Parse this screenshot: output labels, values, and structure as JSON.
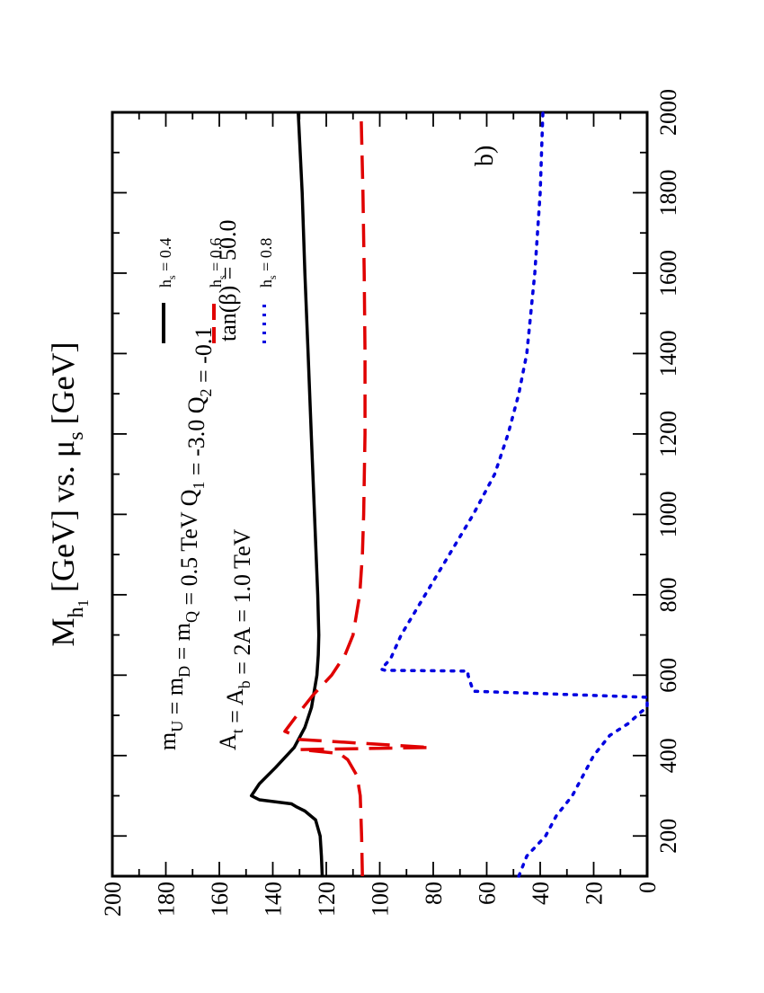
{
  "chart_data": {
    "type": "line",
    "title": "M_h1 [GeV] vs. μ_s [GeV]",
    "title_parts": {
      "m": "M",
      "h": "h",
      "one": "1",
      "gev1": "[GeV]",
      "vs": "vs. μ",
      "s": "s",
      "gev2": "[GeV]"
    },
    "panel_label": "b)",
    "orientation": "rotated-90-ccw",
    "xlim": [
      100,
      2000
    ],
    "ylim": [
      0,
      200
    ],
    "x_ticks": [
      200,
      400,
      600,
      800,
      1000,
      1200,
      1400,
      1600,
      1800,
      2000
    ],
    "y_ticks": [
      0,
      20,
      40,
      60,
      80,
      100,
      120,
      140,
      160,
      180,
      200
    ],
    "grid": false,
    "annotations": {
      "line1_segments": [
        {
          "t": "m",
          "sub": "U"
        },
        {
          "t": " = m",
          "sub": "D"
        },
        {
          "t": " = m",
          "sub": "Q"
        },
        {
          "t": " = 0.5 TeV  Q",
          "sub": "1"
        },
        {
          "t": " = -3.0  Q",
          "sub": "2"
        },
        {
          "t": " = -0.1",
          "sub": ""
        }
      ],
      "line2_segments": [
        {
          "t": "A",
          "sub": "t"
        },
        {
          "t": " = A",
          "sub": "b"
        },
        {
          "t": " = 2A = 1.0 TeV",
          "sub": ""
        }
      ],
      "tanbeta": "tan(β) = 50.0"
    },
    "legend_position": "upper-right",
    "series": [
      {
        "name": "h_s = 0.4",
        "label_main": "h",
        "label_sub": "s",
        "label_val": " = 0.4",
        "color": "#000000",
        "dash": "solid",
        "points": [
          [
            100,
            121.5
          ],
          [
            150,
            121.8
          ],
          [
            200,
            122.3
          ],
          [
            240,
            124
          ],
          [
            262,
            128
          ],
          [
            272,
            131
          ],
          [
            280,
            133
          ],
          [
            290,
            145
          ],
          [
            300,
            148
          ],
          [
            330,
            145
          ],
          [
            370,
            139
          ],
          [
            420,
            132
          ],
          [
            470,
            128
          ],
          [
            520,
            125.5
          ],
          [
            560,
            124.5
          ],
          [
            600,
            123.5
          ],
          [
            650,
            123
          ],
          [
            700,
            122.8
          ],
          [
            800,
            123.2
          ],
          [
            900,
            123.8
          ],
          [
            1000,
            124.4
          ],
          [
            1200,
            125.6
          ],
          [
            1400,
            126.8
          ],
          [
            1600,
            128
          ],
          [
            1800,
            129
          ],
          [
            2000,
            130.5
          ]
        ]
      },
      {
        "name": "h_s = 0.6",
        "label_main": "h",
        "label_sub": "s",
        "label_val": " = 0.6",
        "color": "#e00000",
        "dash": "long-dash",
        "points": [
          [
            100,
            106.5
          ],
          [
            200,
            106.8
          ],
          [
            300,
            107.3
          ],
          [
            350,
            108.5
          ],
          [
            390,
            112
          ],
          [
            405,
            115
          ],
          [
            415,
            130
          ],
          [
            420,
            81
          ],
          [
            425,
            93
          ],
          [
            440,
            130
          ],
          [
            455,
            133.5
          ],
          [
            460,
            135.5
          ],
          [
            500,
            131
          ],
          [
            550,
            125
          ],
          [
            600,
            118
          ],
          [
            650,
            113
          ],
          [
            700,
            110
          ],
          [
            800,
            107.5
          ],
          [
            900,
            106.5
          ],
          [
            1000,
            106
          ],
          [
            1200,
            105.5
          ],
          [
            1400,
            105.5
          ],
          [
            1600,
            105.8
          ],
          [
            1800,
            106.3
          ],
          [
            2000,
            107
          ]
        ]
      },
      {
        "name": "h_s = 0.8",
        "label_main": "h",
        "label_sub": "s",
        "label_val": " = 0.8",
        "color": "#0000e0",
        "dash": "dot",
        "points": [
          [
            100,
            48
          ],
          [
            150,
            45
          ],
          [
            200,
            38
          ],
          [
            250,
            34
          ],
          [
            300,
            28
          ],
          [
            350,
            24
          ],
          [
            400,
            20
          ],
          [
            450,
            14
          ],
          [
            480,
            7
          ],
          [
            510,
            2
          ],
          [
            520,
            0
          ],
          [
            545,
            0
          ],
          [
            560,
            65
          ],
          [
            580,
            66
          ],
          [
            600,
            67
          ],
          [
            610,
            67
          ],
          [
            612,
            98
          ],
          [
            615,
            99.5
          ],
          [
            640,
            96
          ],
          [
            700,
            92
          ],
          [
            800,
            83
          ],
          [
            900,
            74
          ],
          [
            1000,
            65
          ],
          [
            1100,
            57
          ],
          [
            1200,
            52
          ],
          [
            1300,
            48
          ],
          [
            1400,
            45
          ],
          [
            1600,
            42
          ],
          [
            1800,
            40
          ],
          [
            2000,
            39
          ]
        ]
      }
    ]
  }
}
